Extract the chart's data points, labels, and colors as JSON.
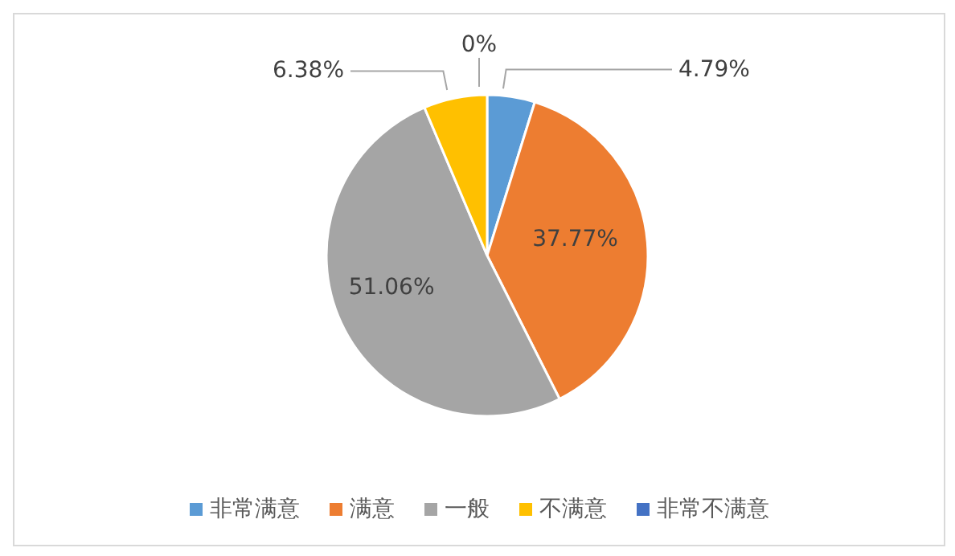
{
  "chart_data": {
    "type": "pie",
    "categories": [
      "非常满意",
      "满意",
      "一般",
      "不满意",
      "非常不满意"
    ],
    "values": [
      4.79,
      37.77,
      51.06,
      6.38,
      0
    ],
    "value_labels": [
      "4.79%",
      "37.77%",
      "51.06%",
      "6.38%",
      "0%"
    ],
    "colors": [
      "#5b9bd5",
      "#ed7d31",
      "#a5a5a5",
      "#ffc000",
      "#4472c4"
    ],
    "legend": "bottom"
  }
}
